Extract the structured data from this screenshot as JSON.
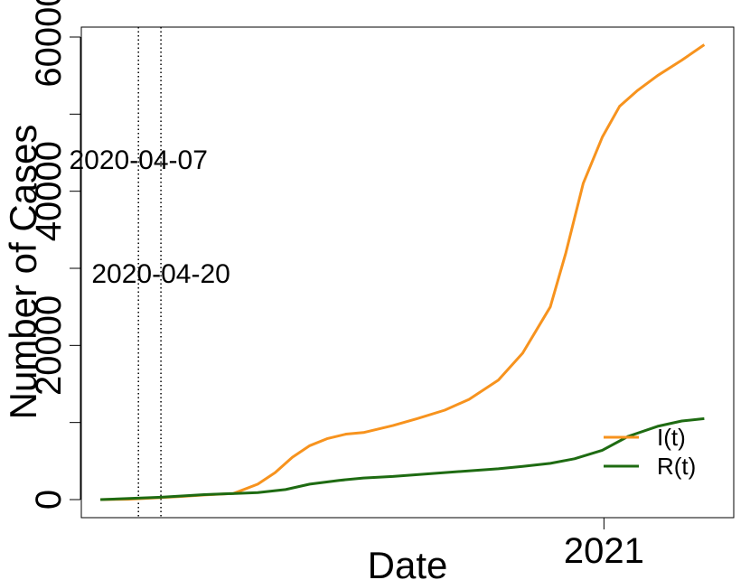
{
  "chart_data": {
    "type": "line",
    "title": "",
    "xlabel": "Date",
    "ylabel": "Number of Cases",
    "x_range": [
      "2020-03-05",
      "2021-03-17"
    ],
    "ylim": [
      0,
      60000
    ],
    "x_ticks": [
      {
        "date": "2021-01-01",
        "label": "2021"
      }
    ],
    "y_ticks": [
      {
        "value": 0,
        "label": "0"
      },
      {
        "value": 20000,
        "label": "20000"
      },
      {
        "value": 40000,
        "label": "40000"
      },
      {
        "value": 60000,
        "label": "60000"
      }
    ],
    "y_minor_ticks": [
      10000,
      30000,
      50000
    ],
    "vlines": [
      {
        "date": "2020-04-07",
        "label": "2020-04-07",
        "label_value": 44200
      },
      {
        "date": "2020-04-20",
        "label": "2020-04-20",
        "label_value": 29400
      }
    ],
    "legend": {
      "position": "right"
    },
    "series": [
      {
        "name": "I(t)",
        "color": "#f7931e",
        "points": [
          [
            "2020-03-16",
            0
          ],
          [
            "2020-04-01",
            50
          ],
          [
            "2020-04-15",
            200
          ],
          [
            "2020-05-01",
            400
          ],
          [
            "2020-05-15",
            600
          ],
          [
            "2020-06-01",
            800
          ],
          [
            "2020-06-15",
            2000
          ],
          [
            "2020-06-25",
            3500
          ],
          [
            "2020-07-05",
            5500
          ],
          [
            "2020-07-15",
            7000
          ],
          [
            "2020-07-25",
            7900
          ],
          [
            "2020-08-05",
            8500
          ],
          [
            "2020-08-15",
            8700
          ],
          [
            "2020-09-01",
            9600
          ],
          [
            "2020-09-15",
            10500
          ],
          [
            "2020-10-01",
            11600
          ],
          [
            "2020-10-15",
            13000
          ],
          [
            "2020-11-01",
            15500
          ],
          [
            "2020-11-15",
            19000
          ],
          [
            "2020-12-01",
            25000
          ],
          [
            "2020-12-10",
            32000
          ],
          [
            "2020-12-20",
            41000
          ],
          [
            "2020-12-31",
            47000
          ],
          [
            "2021-01-10",
            51000
          ],
          [
            "2021-01-20",
            53000
          ],
          [
            "2021-02-01",
            55000
          ],
          [
            "2021-02-15",
            57000
          ],
          [
            "2021-02-28",
            59000
          ]
        ]
      },
      {
        "name": "R(t)",
        "color": "#1e6b12",
        "points": [
          [
            "2020-03-16",
            0
          ],
          [
            "2020-04-20",
            300
          ],
          [
            "2020-05-15",
            650
          ],
          [
            "2020-06-15",
            900
          ],
          [
            "2020-07-01",
            1300
          ],
          [
            "2020-07-15",
            2000
          ],
          [
            "2020-08-01",
            2500
          ],
          [
            "2020-08-15",
            2800
          ],
          [
            "2020-09-01",
            3000
          ],
          [
            "2020-10-01",
            3500
          ],
          [
            "2020-11-01",
            4000
          ],
          [
            "2020-11-15",
            4300
          ],
          [
            "2020-12-01",
            4700
          ],
          [
            "2020-12-15",
            5300
          ],
          [
            "2020-12-31",
            6400
          ],
          [
            "2021-01-15",
            8200
          ],
          [
            "2021-02-01",
            9500
          ],
          [
            "2021-02-15",
            10200
          ],
          [
            "2021-02-28",
            10500
          ]
        ]
      }
    ]
  }
}
